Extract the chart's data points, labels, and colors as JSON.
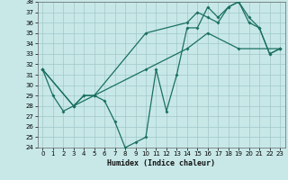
{
  "xlabel": "Humidex (Indice chaleur)",
  "xlim_min": -0.5,
  "xlim_max": 23.5,
  "ylim_min": 24,
  "ylim_max": 38,
  "yticks": [
    24,
    25,
    26,
    27,
    28,
    29,
    30,
    31,
    32,
    33,
    34,
    35,
    36,
    37,
    38
  ],
  "xticks": [
    0,
    1,
    2,
    3,
    4,
    5,
    6,
    7,
    8,
    9,
    10,
    11,
    12,
    13,
    14,
    15,
    16,
    17,
    18,
    19,
    20,
    21,
    22,
    23
  ],
  "bg_color": "#c8e8e8",
  "grid_color": "#a0c8c8",
  "line_color": "#1a7060",
  "line1_x": [
    0,
    1,
    2,
    3,
    4,
    5,
    6,
    7,
    8,
    9,
    10,
    11,
    12,
    13,
    14,
    15,
    16,
    17,
    18,
    19,
    20,
    21,
    22,
    23
  ],
  "line1_y": [
    31.5,
    29.0,
    27.5,
    28.0,
    29.0,
    29.0,
    28.5,
    26.5,
    24.0,
    24.5,
    25.0,
    31.5,
    27.5,
    31.0,
    35.5,
    35.5,
    37.5,
    36.5,
    37.5,
    38.0,
    36.0,
    35.5,
    33.0,
    33.5
  ],
  "line2_x": [
    0,
    3,
    4,
    5,
    10,
    14,
    15,
    16,
    17,
    18,
    19,
    20,
    21,
    22,
    23
  ],
  "line2_y": [
    31.5,
    28.0,
    29.0,
    29.0,
    35.0,
    36.0,
    37.0,
    36.5,
    36.0,
    37.5,
    38.0,
    36.5,
    35.5,
    33.0,
    33.5
  ],
  "line3_x": [
    0,
    3,
    5,
    10,
    14,
    16,
    19,
    23
  ],
  "line3_y": [
    31.5,
    28.0,
    29.0,
    31.5,
    33.5,
    35.0,
    33.5,
    33.5
  ]
}
